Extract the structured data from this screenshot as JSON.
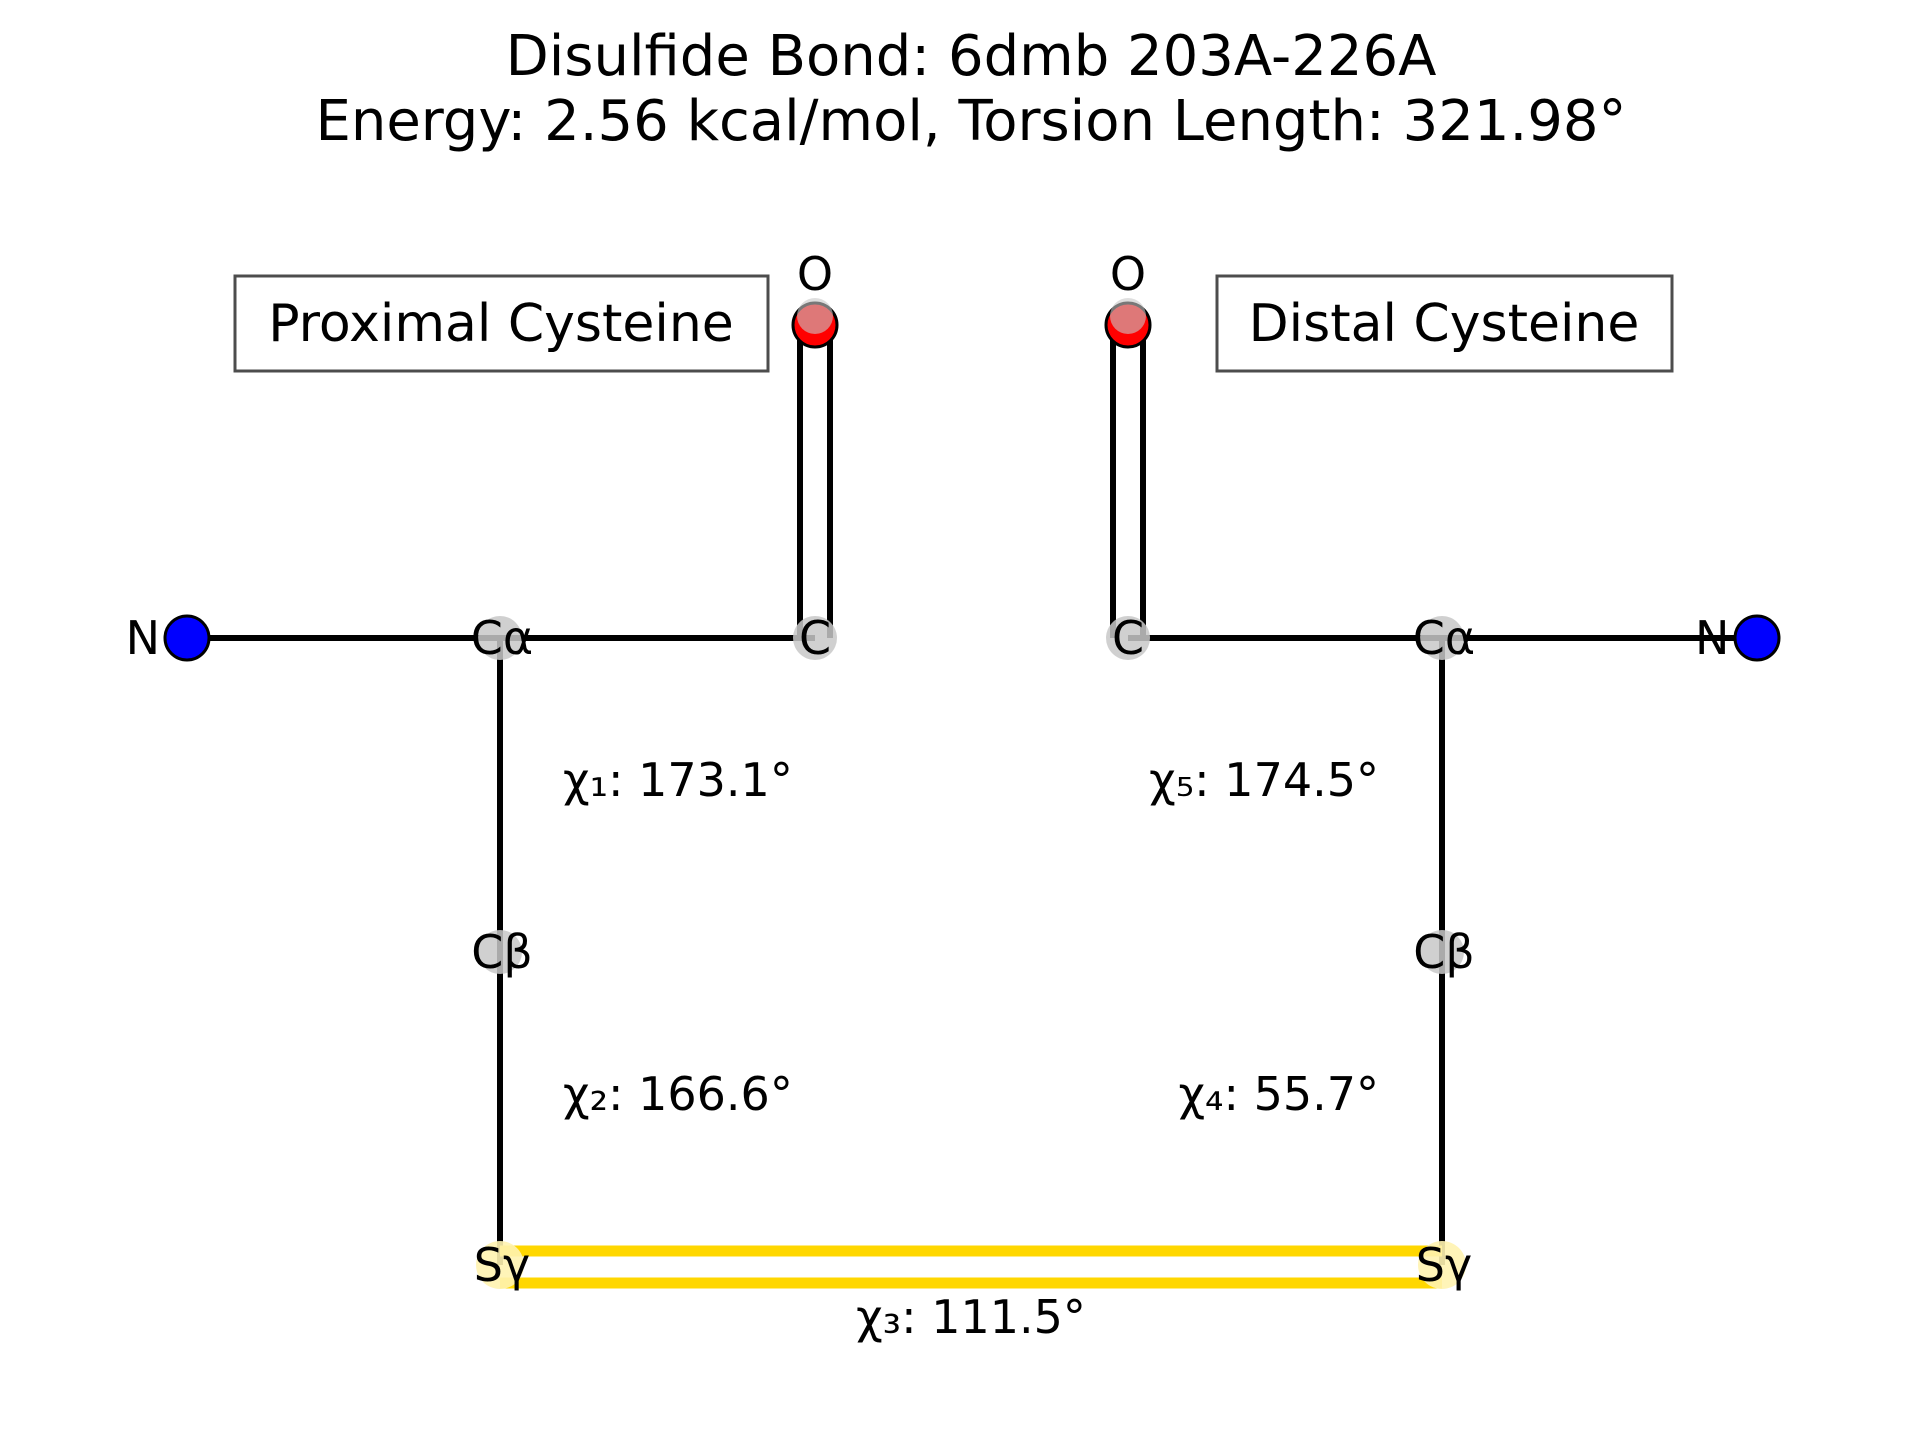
{
  "title": {
    "line1": "Disulfide Bond: 6dmb 203A-226A",
    "line2": "Energy: 2.56 kcal/mol, Torsion Length: 321.98°"
  },
  "boxes": {
    "proximal": "Proximal Cysteine",
    "distal": "Distal Cysteine"
  },
  "atoms": {
    "proximal": {
      "N": "N",
      "CA": "Cα",
      "C": "C",
      "O": "O",
      "CB": "Cβ",
      "SG": "Sγ"
    },
    "distal": {
      "N": "N",
      "CA": "Cα",
      "C": "C",
      "O": "O",
      "CB": "Cβ",
      "SG": "Sγ"
    }
  },
  "torsions": {
    "chi1": "χ₁: 173.1°",
    "chi2": "χ₂: 166.6°",
    "chi3": "χ₃: 111.5°",
    "chi4": "χ₄: 55.7°",
    "chi5": "χ₅: 174.5°"
  },
  "colors": {
    "nitrogen": "#0000ff",
    "oxygen": "#ff0000",
    "carbon": "#c8c8c8",
    "sulfur_bond": "#ffd700",
    "sulfur_atom": "#fff3b0",
    "bond": "#000000",
    "box_border": "#4d4d4d"
  }
}
